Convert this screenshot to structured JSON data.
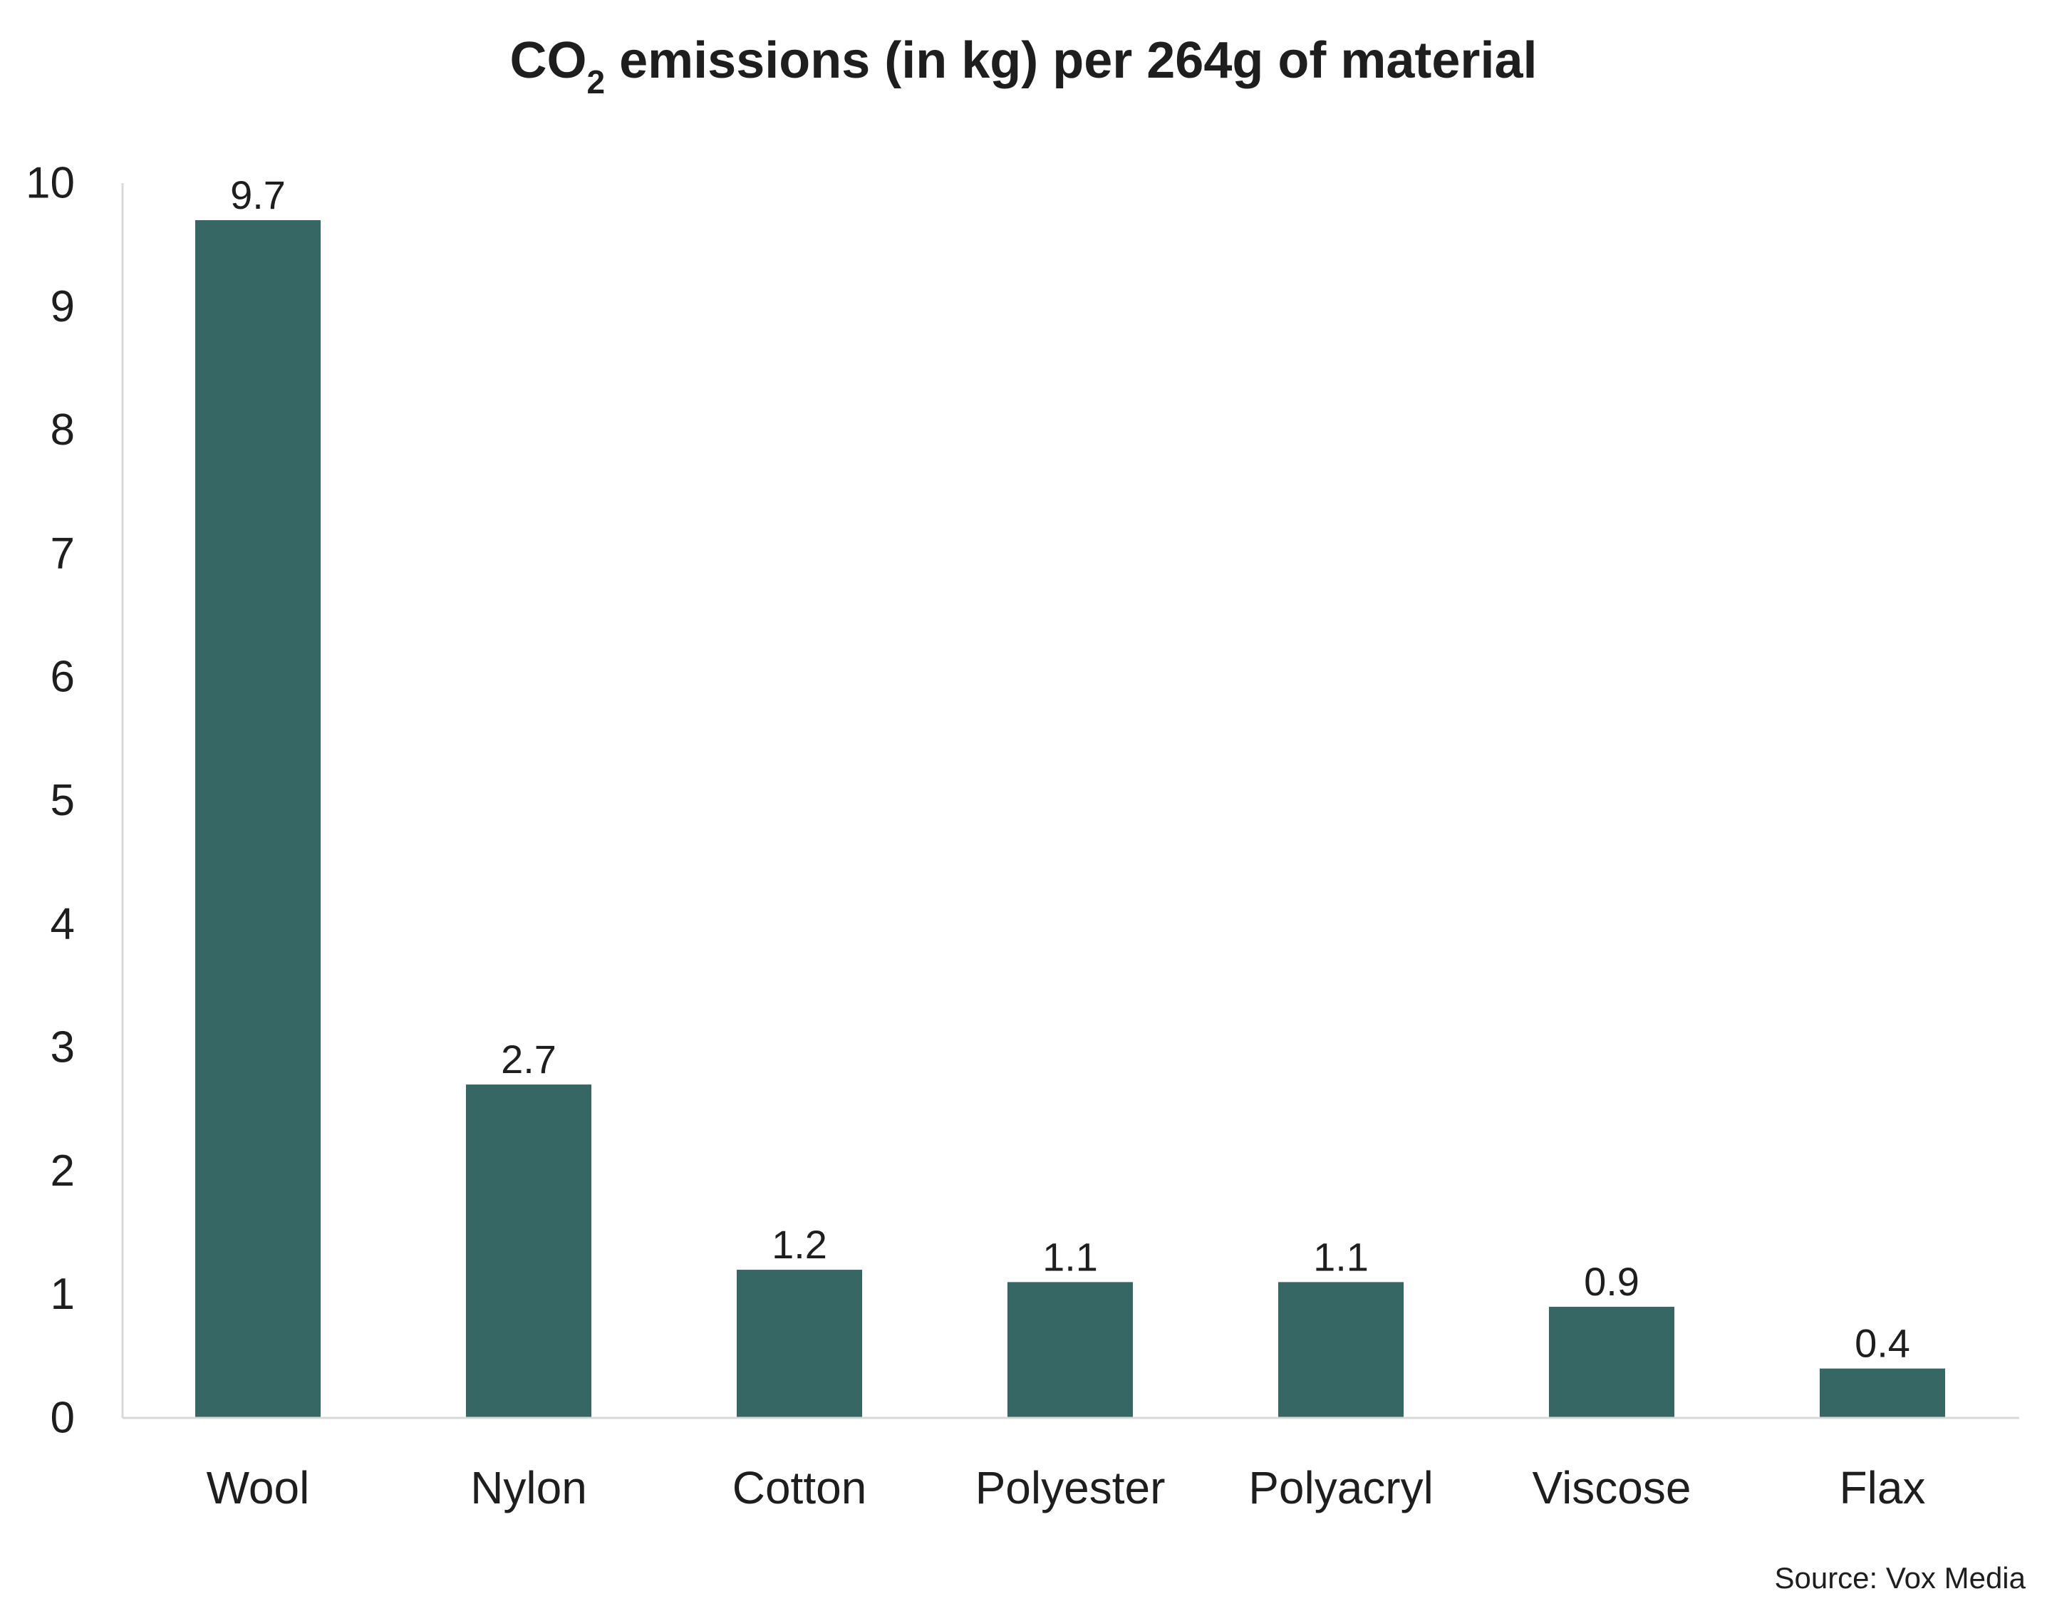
{
  "title": {
    "prefix": "CO",
    "subscript": "2",
    "suffix": " emissions (in kg) per 264g of material"
  },
  "source": "Source: Vox Media",
  "colors": {
    "bar": "#376764",
    "axis": "#d8d8d8",
    "text": "#1e1e1e"
  },
  "chart_data": {
    "type": "bar",
    "title": "CO2 emissions (in kg) per 264g of material",
    "categories": [
      "Wool",
      "Nylon",
      "Cotton",
      "Polyester",
      "Polyacryl",
      "Viscose",
      "Flax"
    ],
    "values": [
      9.7,
      2.7,
      1.2,
      1.1,
      1.1,
      0.9,
      0.4
    ],
    "value_labels": [
      "9.7",
      "2.7",
      "1.2",
      "1.1",
      "1.1",
      "0.9",
      "0.4"
    ],
    "xlabel": "",
    "ylabel": "",
    "ylim": [
      0,
      10
    ],
    "yticks": [
      0,
      1,
      2,
      3,
      4,
      5,
      6,
      7,
      8,
      9,
      10
    ],
    "grid": false,
    "legend": "none"
  }
}
